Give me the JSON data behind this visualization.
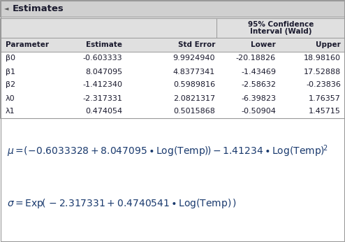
{
  "title": "Estimates",
  "col1": [
    "β0",
    "β1",
    "β2",
    "λ0",
    "λ1"
  ],
  "col2": [
    "-0.603333",
    "8.047095",
    "-1.412340",
    "-2.317331",
    "0.474054"
  ],
  "col3": [
    "9.9924940",
    "4.8377341",
    "0.5989816",
    "2.0821317",
    "0.5015868"
  ],
  "col4": [
    "-20.18826",
    "-1.43469",
    "-2.58632",
    "-6.39823",
    "-0.50904"
  ],
  "col5": [
    "18.98160",
    "17.52888",
    "-0.23836",
    "1.76357",
    "1.45715"
  ],
  "ci_header_line1": "95% Confidence",
  "ci_header_line2": "Interval (Wald)",
  "col_headers": [
    "Parameter",
    "Estimate",
    "Std Error",
    "Lower",
    "Upper"
  ],
  "bg_color": "#f5f5f5",
  "white_bg": "#ffffff",
  "header_bg": "#e0e0e0",
  "text_color": "#1a1a2e",
  "border_color": "#999999",
  "title_bg": "#d0d0d0",
  "formula_color": "#1a3a6e"
}
